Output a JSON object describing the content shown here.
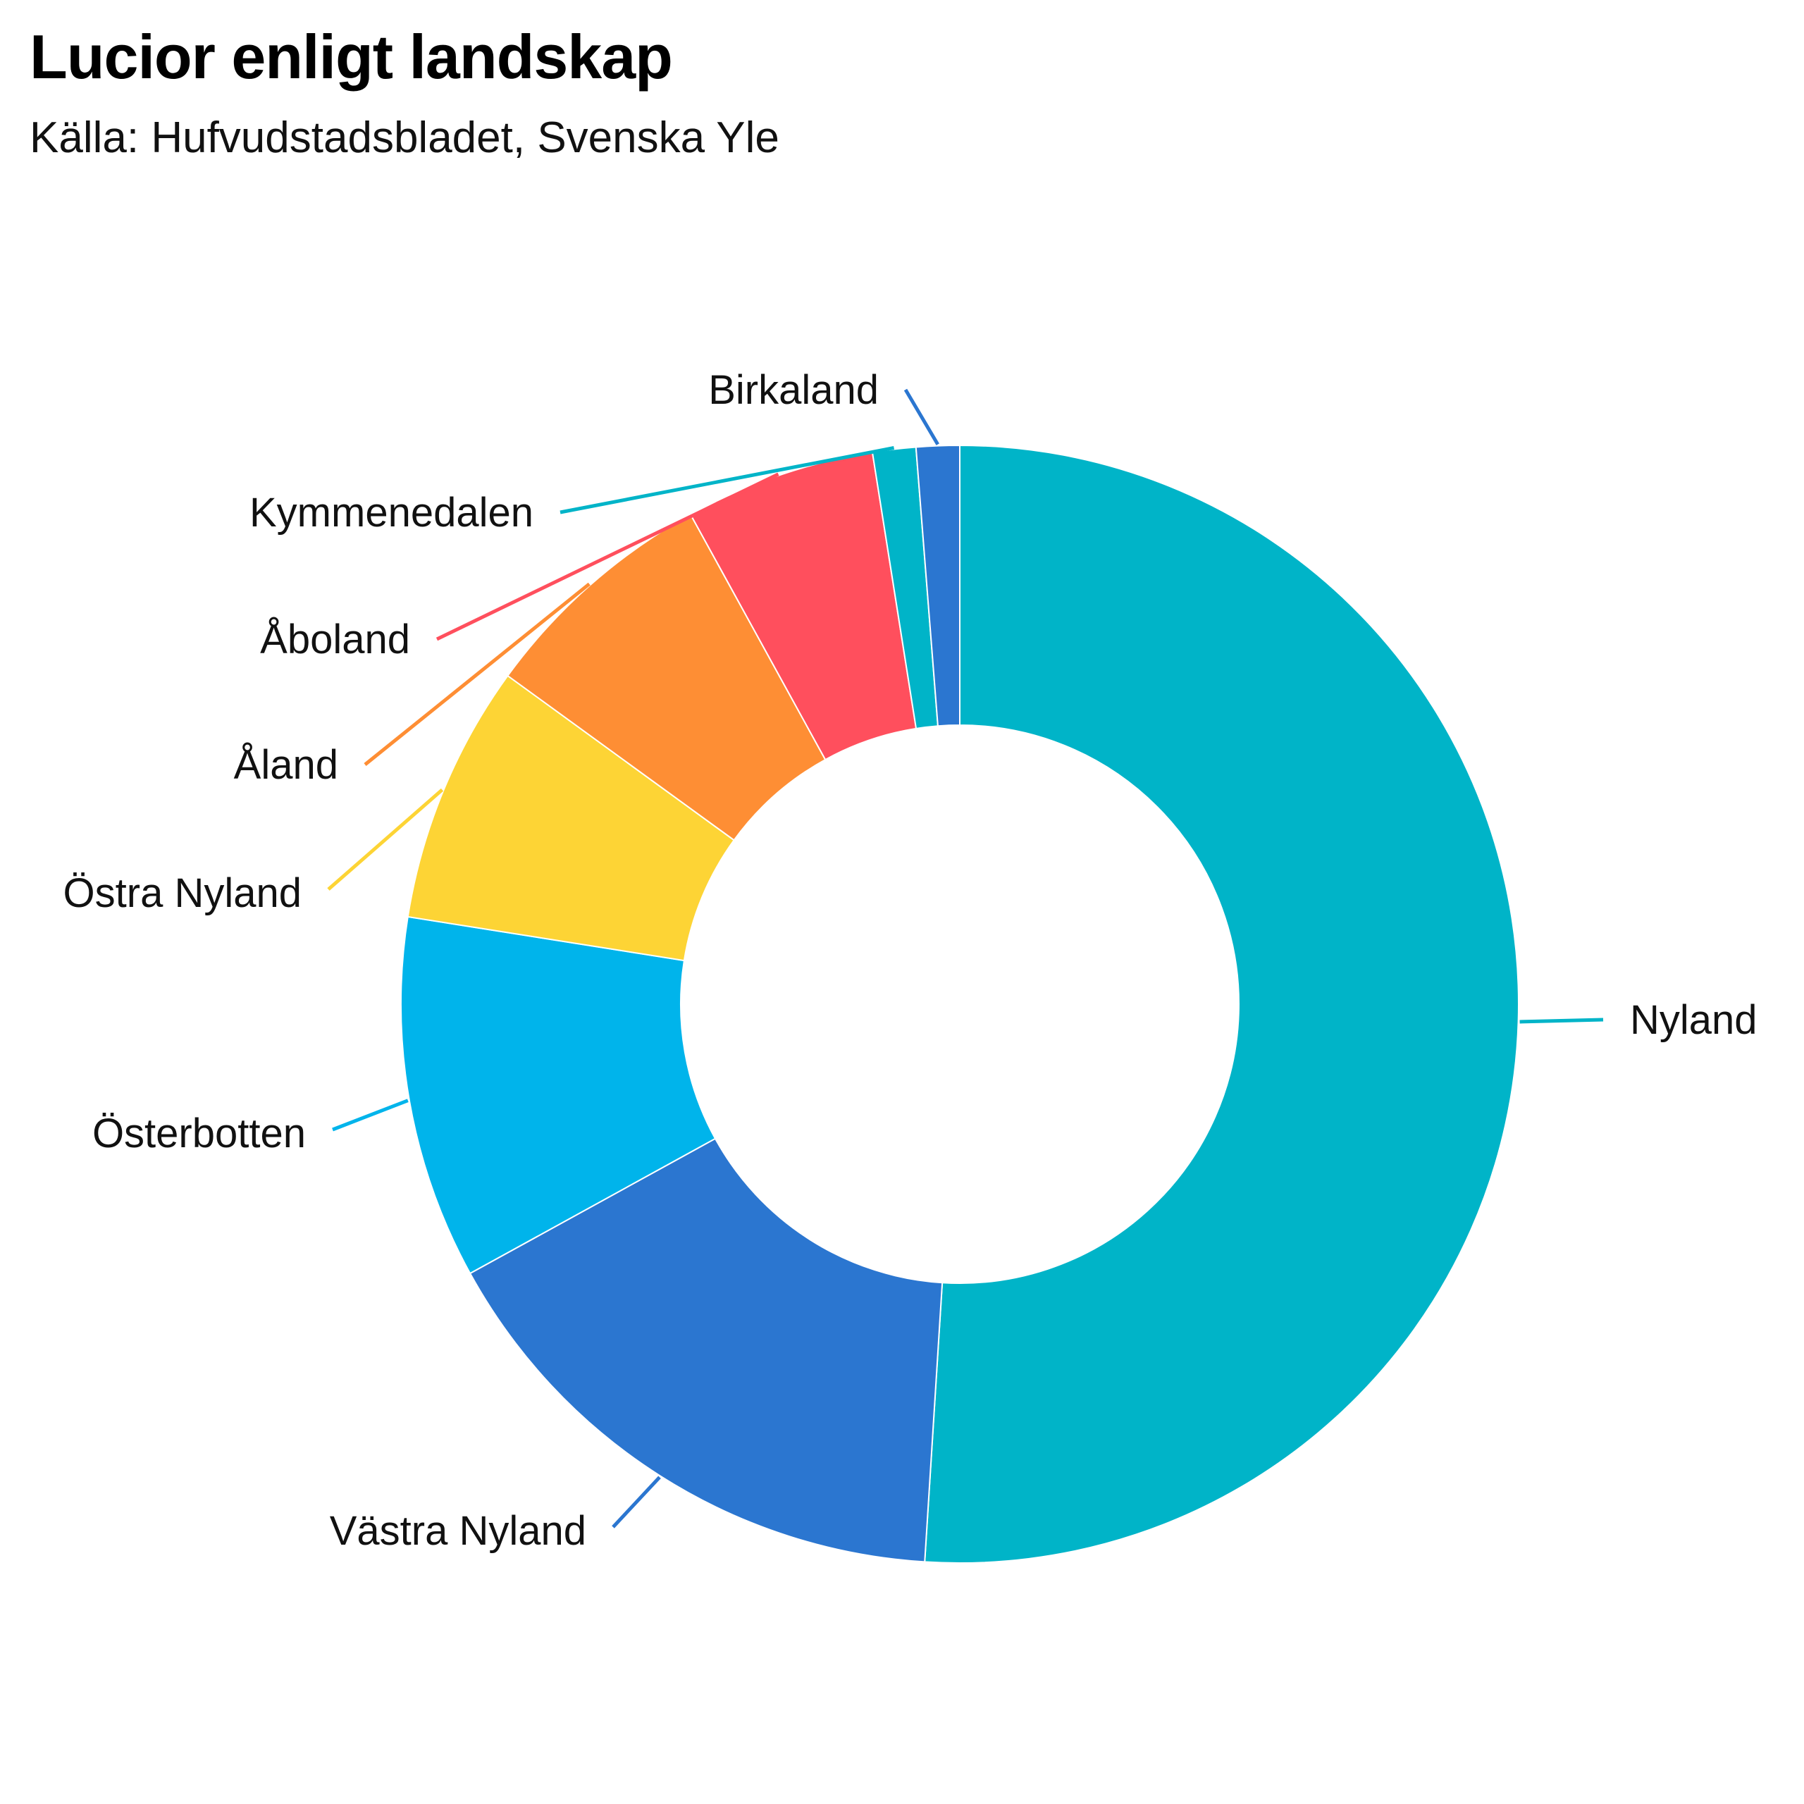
{
  "chart_data": {
    "type": "pie",
    "title": "Lucior enligt landskap",
    "subtitle": "Källa: Hufvudstadsbladet, Svenska Yle",
    "donut": true,
    "categories": [
      "Nyland",
      "Västra Nyland",
      "Österbotten",
      "Östra Nyland",
      "Åland",
      "Åboland",
      "Kymmenedalen",
      "Birkaland"
    ],
    "values": [
      51,
      16,
      10.5,
      7.5,
      7,
      5.5,
      1.25,
      1.25
    ],
    "colors": [
      "#00b4c8",
      "#2b76d0",
      "#00b4eb",
      "#fdd435",
      "#fe8e34",
      "#ff4f5d",
      "#00b4c8",
      "#2b76d0"
    ]
  }
}
